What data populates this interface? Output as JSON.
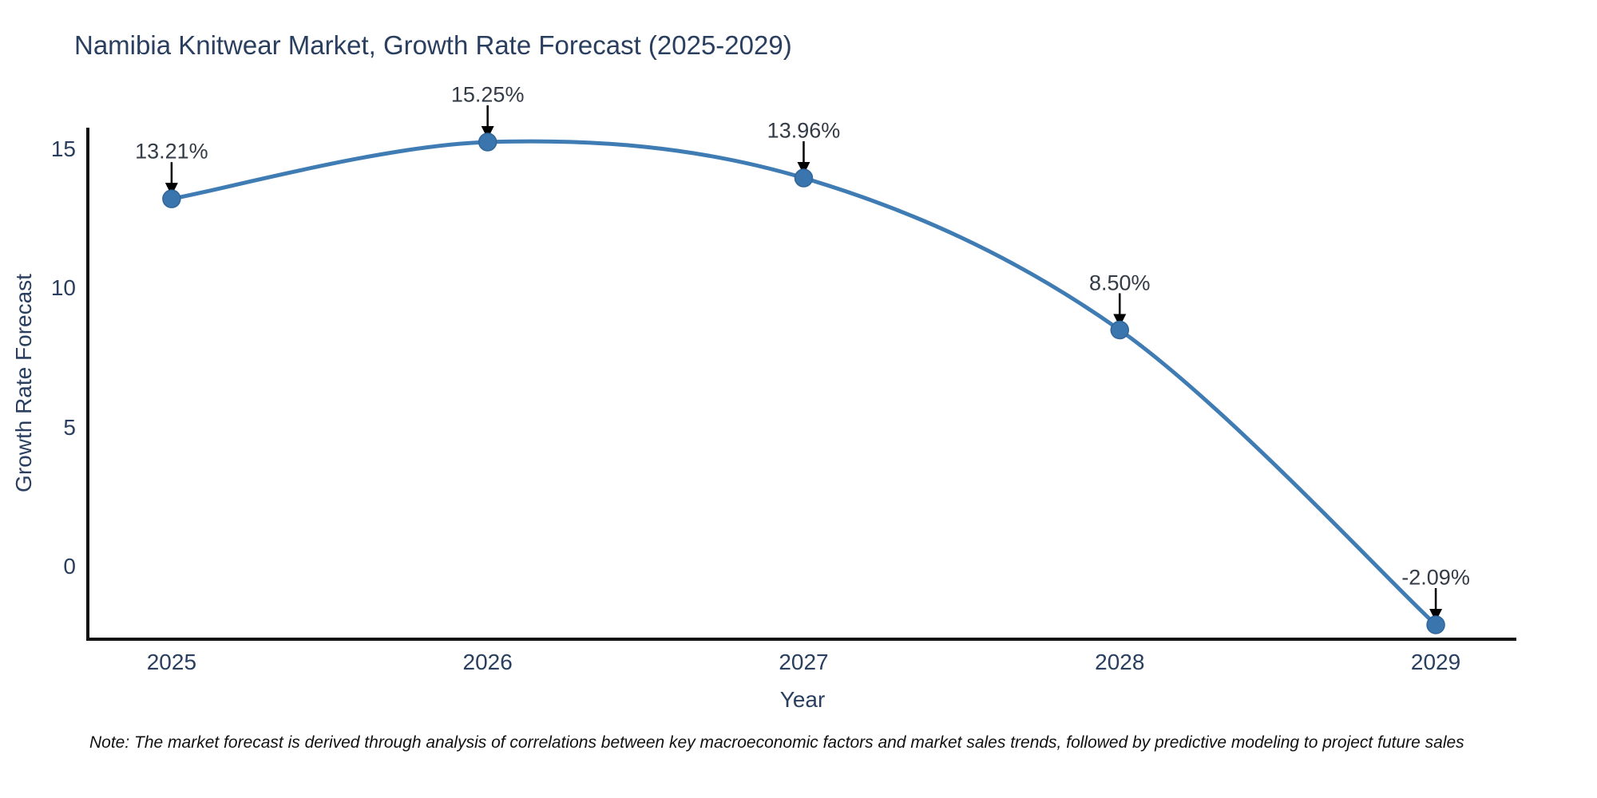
{
  "page": {
    "background": "#ffffff"
  },
  "header": {
    "title": "Namibia Knitwear Market, Growth Rate Forecast (2025-2029)"
  },
  "chart_data": {
    "type": "line",
    "title": "Namibia Knitwear Market, Growth Rate Forecast (2025-2029)",
    "xlabel": "Year",
    "ylabel": "Growth Rate Forecast",
    "x": [
      2025,
      2026,
      2027,
      2028,
      2029
    ],
    "values": [
      13.21,
      15.25,
      13.96,
      8.5,
      -2.09
    ],
    "point_labels": [
      "13.21%",
      "15.25%",
      "13.96%",
      "8.50%",
      "-2.09%"
    ],
    "x_ticks": [
      "2025",
      "2026",
      "2027",
      "2028",
      "2029"
    ],
    "y_ticks": [
      0,
      5,
      10,
      15
    ],
    "xlim": [
      2024.735,
      2029.255
    ],
    "ylim": [
      -2.606,
      15.766
    ],
    "line_shape": "spline",
    "grid": false,
    "legend": "none",
    "colors": {
      "line": "#3f7cb3",
      "marker": "#3a76ad",
      "marker_edge": "#31659a",
      "axis": "#111111",
      "text": "#2a3f5f",
      "annotation": "#333b46",
      "arrow": "#000000"
    }
  },
  "footnote": {
    "text": "Note: The market forecast is derived through analysis of correlations between key macroeconomic factors and market sales trends, followed by predictive modeling to project future sales"
  }
}
